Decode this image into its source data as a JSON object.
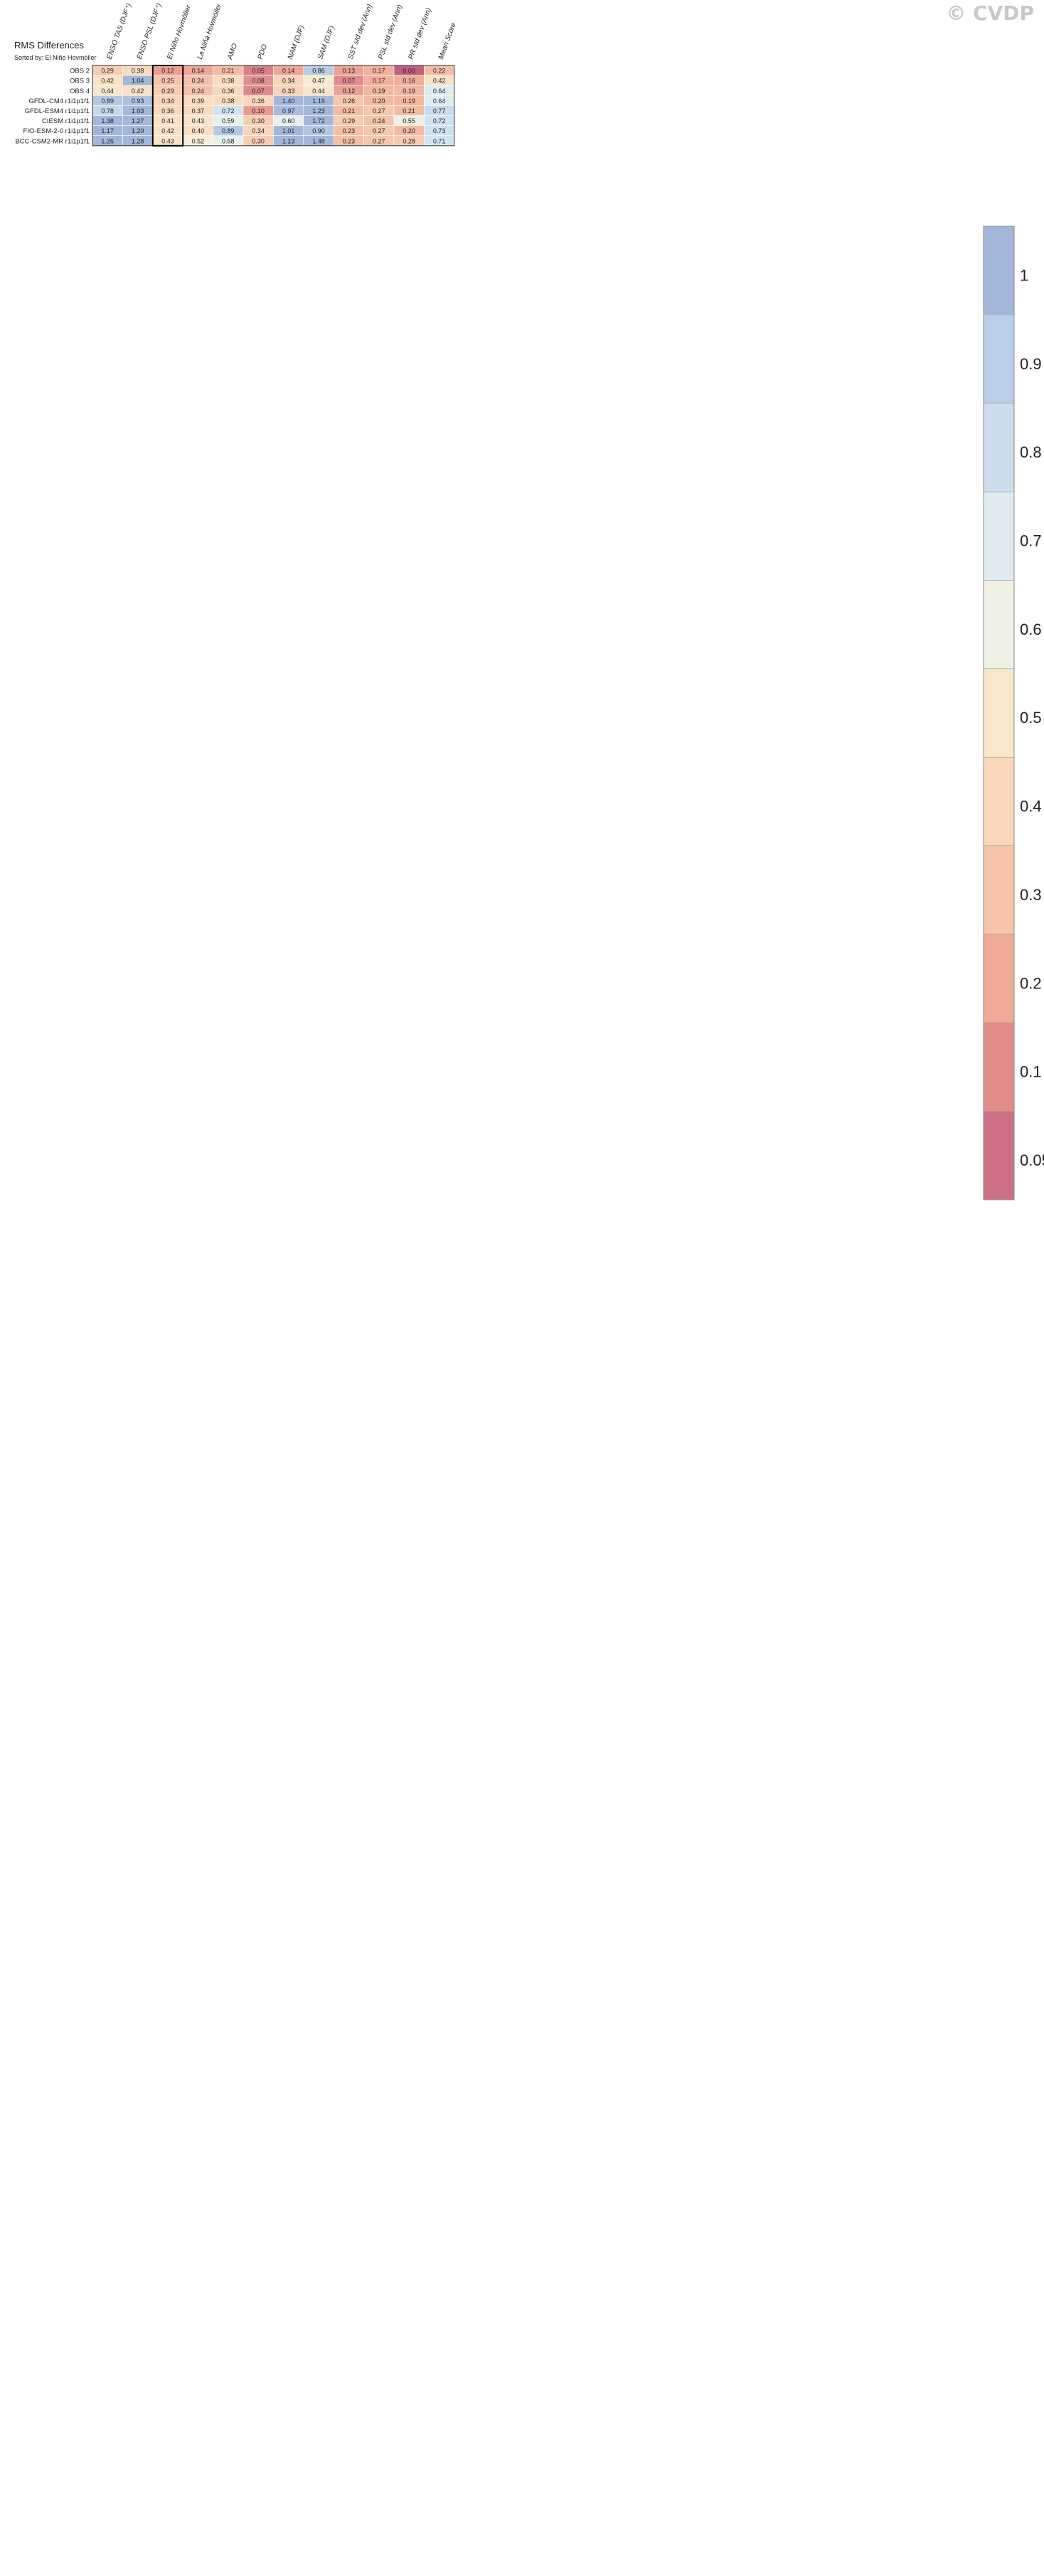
{
  "header": {
    "title": "RMS Differences",
    "subtitle": "Sorted by: El Niño Hovmöller",
    "logo": "© CVDP"
  },
  "chart_data": {
    "type": "heatmap",
    "columns": [
      "ENSO TAS (DJF⁺)",
      "ENSO PSL (DJF⁺)",
      "El Niño Hovmöller",
      "La Niña Hovmöller",
      "AMO",
      "PDO",
      "NAM (DJF)",
      "SAM (DJF)",
      "SST std dev (Ann)",
      "PSL std dev (Ann)",
      "PR std dev (Ann)",
      "Mean Score"
    ],
    "highlight_column": "El Niño Hovmöller",
    "rows": [
      {
        "label": "OBS 2",
        "values": [
          "0.29",
          "0.38",
          "0.12",
          "0.14",
          "0.21",
          "0.05",
          "0.14",
          "0.86",
          "0.13",
          "0.17",
          "0.00",
          "0.22"
        ]
      },
      {
        "label": "OBS 3",
        "values": [
          "0.42",
          "1.04",
          "0.25",
          "0.24",
          "0.38",
          "0.08",
          "0.34",
          "0.47",
          "0.07",
          "0.17",
          "0.16",
          "0.42"
        ]
      },
      {
        "label": "OBS 4",
        "values": [
          "0.44",
          "0.42",
          "0.29",
          "0.24",
          "0.36",
          "0.07",
          "0.33",
          "0.44",
          "0.12",
          "0.19",
          "0.19",
          "0.64"
        ]
      },
      {
        "label": "GFDL-CM4 r1i1p1f1",
        "values": [
          "0.89",
          "0.93",
          "0.34",
          "0.39",
          "0.38",
          "0.36",
          "1.40",
          "1.19",
          "0.26",
          "0.20",
          "0.19",
          "0.64"
        ]
      },
      {
        "label": "GFDL-ESM4 r1i1p1f1",
        "values": [
          "0.78",
          "1.03",
          "0.36",
          "0.37",
          "0.72",
          "0.10",
          "0.97",
          "1.23",
          "0.21",
          "0.27",
          "0.21",
          "0.77"
        ]
      },
      {
        "label": "CIESM r1i1p1f1",
        "values": [
          "1.38",
          "1.27",
          "0.41",
          "0.43",
          "0.59",
          "0.30",
          "0.60",
          "1.72",
          "0.29",
          "0.24",
          "0.55",
          "0.72"
        ]
      },
      {
        "label": "FIO-ESM-2-0 r1i1p1f1",
        "values": [
          "1.17",
          "1.20",
          "0.42",
          "0.40",
          "0.89",
          "0.34",
          "1.01",
          "0.90",
          "0.23",
          "0.27",
          "0.20",
          "0.73"
        ]
      },
      {
        "label": "BCC-CSM2-MR r1i1p1f1",
        "values": [
          "1.26",
          "1.28",
          "0.43",
          "0.52",
          "0.58",
          "0.30",
          "1.13",
          "1.48",
          "0.23",
          "0.27",
          "0.28",
          "0.71"
        ]
      }
    ],
    "colorbar": {
      "ticks": [
        "1",
        "0.9",
        "0.8",
        "0.7",
        "0.6",
        "0.5",
        "0.4",
        "0.3",
        "0.2",
        "0.1",
        "0.05"
      ]
    }
  }
}
